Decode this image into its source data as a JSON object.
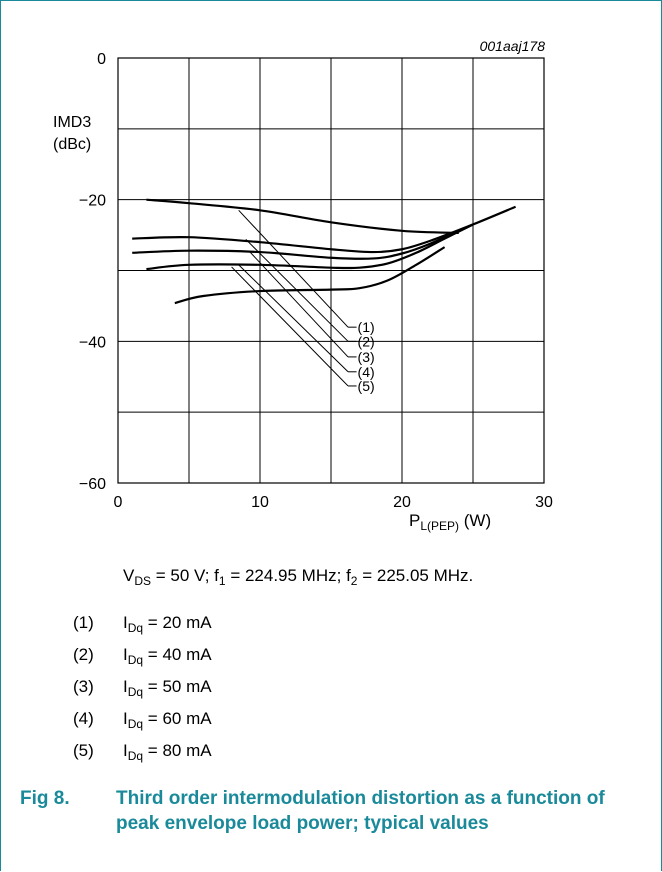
{
  "figure_id": "001aaj178",
  "conditions": {
    "vds": "V",
    "vds_sub": "DS",
    "vds_rest": " = 50 V; f",
    "f1_sub": "1",
    "f1_rest": " = 224.95 MHz; f",
    "f2_sub": "2",
    "f2_rest": " = 225.05 MHz."
  },
  "legend": [
    {
      "num": "(1)",
      "text": "I",
      "sub": "Dq",
      "rest": " = 20 mA"
    },
    {
      "num": "(2)",
      "text": "I",
      "sub": "Dq",
      "rest": " = 40 mA"
    },
    {
      "num": "(3)",
      "text": "I",
      "sub": "Dq",
      "rest": " = 50 mA"
    },
    {
      "num": "(4)",
      "text": "I",
      "sub": "Dq",
      "rest": " = 60 mA"
    },
    {
      "num": "(5)",
      "text": "I",
      "sub": "Dq",
      "rest": " = 80 mA"
    }
  ],
  "caption": {
    "fig": "Fig 8.",
    "title": "Third order intermodulation distortion as a function of peak envelope load power; typical values"
  },
  "colors": {
    "accent": "#1a8a9a",
    "line": "#000000"
  },
  "chart_data": {
    "type": "line",
    "title": "",
    "xlabel": "P",
    "xlabel_sub": "L(PEP)",
    "xlabel_unit": " (W)",
    "ylabel": "IMD3",
    "ylabel_unit": "(dBc)",
    "xlim": [
      0,
      30
    ],
    "ylim": [
      -60,
      0
    ],
    "xticks": [
      0,
      10,
      20,
      30
    ],
    "yticks": [
      0,
      -20,
      -40,
      -60
    ],
    "grid": true,
    "curve_labels": [
      "(1)",
      "(2)",
      "(3)",
      "(4)",
      "(5)"
    ],
    "series": [
      {
        "name": "(1)",
        "x": [
          2,
          5,
          10,
          15,
          20,
          24
        ],
        "y": [
          -20.0,
          -20.5,
          -21.5,
          -23.2,
          -24.4,
          -24.7
        ]
      },
      {
        "name": "(2)",
        "x": [
          1,
          5,
          10,
          15,
          18,
          20,
          22,
          25,
          28
        ],
        "y": [
          -25.5,
          -25.3,
          -26.0,
          -27.0,
          -27.4,
          -27.0,
          -25.8,
          -23.5,
          -21.0
        ]
      },
      {
        "name": "(3)",
        "x": [
          1,
          5,
          10,
          15,
          18,
          20,
          22,
          25
        ],
        "y": [
          -27.5,
          -27.2,
          -27.4,
          -28.2,
          -28.3,
          -27.6,
          -26.2,
          -23.5
        ]
      },
      {
        "name": "(4)",
        "x": [
          2,
          5,
          10,
          15,
          17,
          19,
          21,
          23,
          25
        ],
        "y": [
          -29.8,
          -29.2,
          -29.2,
          -29.6,
          -29.6,
          -29.0,
          -27.5,
          -25.5,
          -23.5
        ]
      },
      {
        "name": "(5)",
        "x": [
          4,
          6,
          10,
          15,
          17,
          19,
          21,
          23
        ],
        "y": [
          -34.6,
          -33.6,
          -32.9,
          -32.7,
          -32.5,
          -31.4,
          -29.2,
          -26.7
        ]
      }
    ]
  }
}
